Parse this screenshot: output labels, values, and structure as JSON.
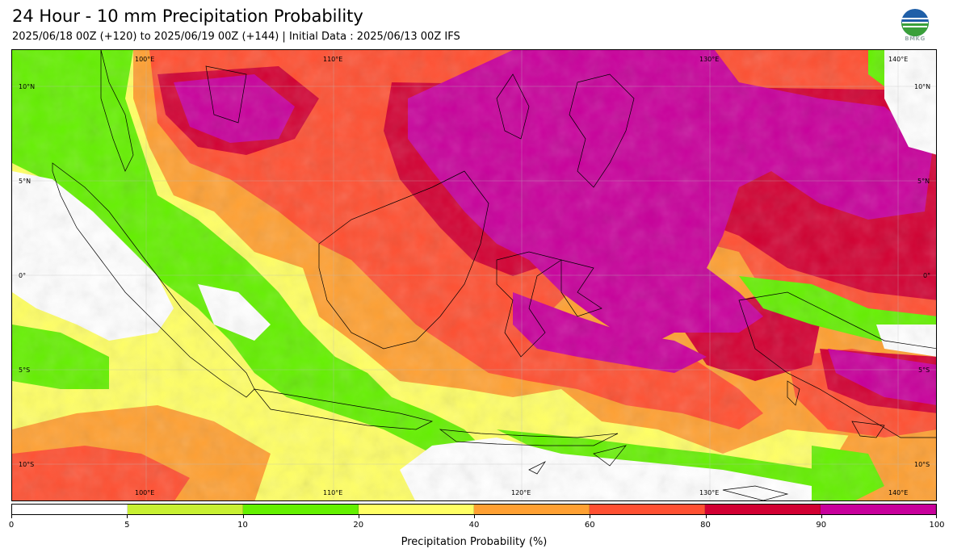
{
  "header": {
    "title": "24 Hour - 10 mm Precipitation Probability",
    "subtitle": "2025/06/18 00Z (+120) to 2025/06/19 00Z (+144) | Initial Data : 2025/06/13 00Z IFS",
    "logo_text": "BMKG"
  },
  "map": {
    "lon_labels": [
      "100°E",
      "110°E",
      "120°E",
      "130°E",
      "140°E"
    ],
    "lat_labels": [
      "10°N",
      "5°N",
      "0°",
      "5°S",
      "10°S"
    ]
  },
  "legend": {
    "title": "Precipitation Probability (%)",
    "ticks": [
      "0",
      "5",
      "10",
      "20",
      "40",
      "60",
      "80",
      "90",
      "100"
    ],
    "colors": [
      "#ffffff",
      "#c8f032",
      "#64f000",
      "#ffff64",
      "#ffa032",
      "#ff5032",
      "#d20032",
      "#c8009b"
    ]
  }
}
